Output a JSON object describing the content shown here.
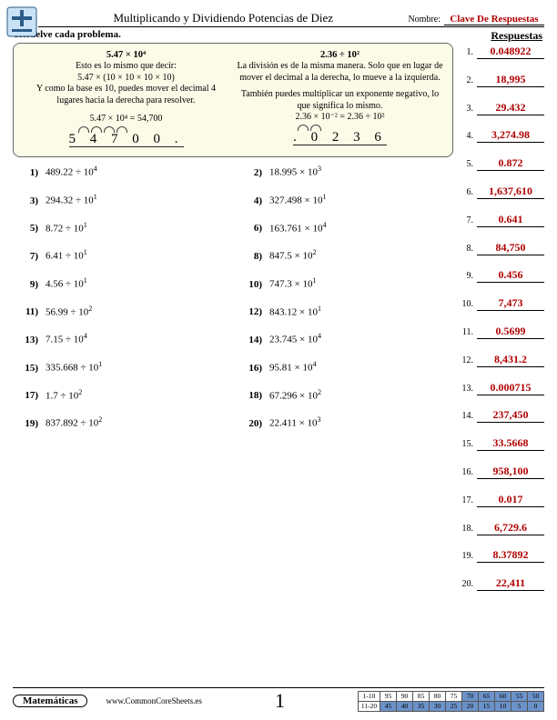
{
  "header": {
    "title": "Multiplicando y Dividiendo Potencias de Diez",
    "name_label": "Nombre:",
    "name_value": "Clave De Respuestas"
  },
  "instruction": "Resuelve cada problema.",
  "answers_heading": "Respuestas",
  "example": {
    "left": {
      "heading": "5.47 × 10⁴",
      "l1": "Esto es lo mismo que decir:",
      "l2": "5.47 × (10 × 10 × 10 × 10)",
      "l3": "Y como la base es 10, puedes mover el decimal 4 lugares hacia la derecha para resolver.",
      "eq": "5.47 × 10⁴ = 54,700",
      "digits": "5 4 7 0 0 ."
    },
    "right": {
      "heading": "2.36 ÷ 10²",
      "l1": "La división es de la misma manera. Solo que en lugar de mover el decimal a la derecha, lo mueve a la izquierda.",
      "l2": "También puedes multiplicar un exponente negativo, lo que significa lo mismo.",
      "eq": "2.36 × 10⁻² = 2.36 ÷ 10²",
      "digits": ". 0 2 3 6"
    }
  },
  "problems": [
    {
      "n": "1)",
      "expr": "489.22 ÷ 10",
      "exp": "4"
    },
    {
      "n": "2)",
      "expr": "18.995 × 10",
      "exp": "3"
    },
    {
      "n": "3)",
      "expr": "294.32 ÷ 10",
      "exp": "1"
    },
    {
      "n": "4)",
      "expr": "327.498 × 10",
      "exp": "1"
    },
    {
      "n": "5)",
      "expr": "8.72 ÷ 10",
      "exp": "1"
    },
    {
      "n": "6)",
      "expr": "163.761 × 10",
      "exp": "4"
    },
    {
      "n": "7)",
      "expr": "6.41 ÷ 10",
      "exp": "1"
    },
    {
      "n": "8)",
      "expr": "847.5 × 10",
      "exp": "2"
    },
    {
      "n": "9)",
      "expr": "4.56 ÷ 10",
      "exp": "1"
    },
    {
      "n": "10)",
      "expr": "747.3 × 10",
      "exp": "1"
    },
    {
      "n": "11)",
      "expr": "56.99 ÷ 10",
      "exp": "2"
    },
    {
      "n": "12)",
      "expr": "843.12 × 10",
      "exp": "1"
    },
    {
      "n": "13)",
      "expr": "7.15 ÷ 10",
      "exp": "4"
    },
    {
      "n": "14)",
      "expr": "23.745 × 10",
      "exp": "4"
    },
    {
      "n": "15)",
      "expr": "335.668 ÷ 10",
      "exp": "1"
    },
    {
      "n": "16)",
      "expr": "95.81 × 10",
      "exp": "4"
    },
    {
      "n": "17)",
      "expr": "1.7 ÷ 10",
      "exp": "2"
    },
    {
      "n": "18)",
      "expr": "67.296 × 10",
      "exp": "2"
    },
    {
      "n": "19)",
      "expr": "837.892 ÷ 10",
      "exp": "2"
    },
    {
      "n": "20)",
      "expr": "22.411 × 10",
      "exp": "3"
    }
  ],
  "answers": [
    {
      "n": "1.",
      "v": "0.048922"
    },
    {
      "n": "2.",
      "v": "18,995"
    },
    {
      "n": "3.",
      "v": "29.432"
    },
    {
      "n": "4.",
      "v": "3,274.98"
    },
    {
      "n": "5.",
      "v": "0.872"
    },
    {
      "n": "6.",
      "v": "1,637,610"
    },
    {
      "n": "7.",
      "v": "0.641"
    },
    {
      "n": "8.",
      "v": "84,750"
    },
    {
      "n": "9.",
      "v": "0.456"
    },
    {
      "n": "10.",
      "v": "7,473"
    },
    {
      "n": "11.",
      "v": "0.5699"
    },
    {
      "n": "12.",
      "v": "8,431.2"
    },
    {
      "n": "13.",
      "v": "0.000715"
    },
    {
      "n": "14.",
      "v": "237,450"
    },
    {
      "n": "15.",
      "v": "33.5668"
    },
    {
      "n": "16.",
      "v": "958,100"
    },
    {
      "n": "17.",
      "v": "0.017"
    },
    {
      "n": "18.",
      "v": "6,729.6"
    },
    {
      "n": "19.",
      "v": "8.37892"
    },
    {
      "n": "20.",
      "v": "22,411"
    }
  ],
  "footer": {
    "subject": "Matemáticas",
    "site": "www.CommonCoreSheets.es",
    "page": "1",
    "score_rows": {
      "r1_label": "1-10",
      "r1": [
        "95",
        "90",
        "85",
        "80",
        "75",
        "70",
        "65",
        "60",
        "55",
        "50"
      ],
      "r2_label": "11-20",
      "r2": [
        "45",
        "40",
        "35",
        "30",
        "25",
        "20",
        "15",
        "10",
        "5",
        "0"
      ]
    }
  },
  "colors": {
    "answer_red": "#b00000",
    "example_bg": "#fbfbe8",
    "score_blue": "#6b92c9"
  }
}
